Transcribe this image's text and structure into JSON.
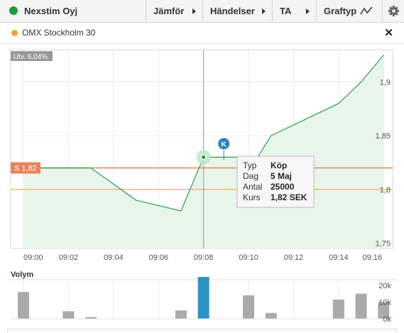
{
  "toolbar": {
    "instrument_name": "Nexstim Oyj",
    "compare_label": "Jämför",
    "events_label": "Händelser",
    "ta_label": "TA",
    "graph_type_label": "Graftyp"
  },
  "legend": {
    "index_name": "OMX Stockholm 30",
    "close_symbol": "✕"
  },
  "colors": {
    "price_line": "#2e9e4a",
    "price_fill": "#e8f5ea",
    "sell_line": "#e8835a",
    "index_line": "#f0c24a",
    "volume_bar": "#aaaaaa",
    "volume_highlight": "#2b93c8"
  },
  "chart_data": [
    {
      "type": "area",
      "change_badge": "Utv. 6,04%",
      "x_ticks": [
        "09:00",
        "09:02",
        "09:04",
        "09:06",
        "09:08",
        "09:10",
        "09:12",
        "09:14",
        "09:16"
      ],
      "y_ticks": [
        "1,75",
        "1,8",
        "1,85",
        "1,9"
      ],
      "ylim": [
        1.745,
        1.93
      ],
      "xlim": [
        0,
        16.4
      ],
      "series": [
        {
          "x": [
            0,
            3,
            5,
            7,
            8,
            8.5,
            10.4,
            11,
            14,
            15,
            16
          ],
          "y": [
            1.82,
            1.82,
            1.79,
            1.78,
            1.83,
            1.83,
            1.83,
            1.85,
            1.88,
            1.9,
            1.925
          ]
        }
      ],
      "sell_level": {
        "label": "S 1,82",
        "value": 1.82
      },
      "index_level": 1.8,
      "trade_marker": {
        "label": "K",
        "x": 8.9,
        "y": 1.83
      },
      "crosshair_x": 8,
      "tooltip": {
        "rows": [
          {
            "key": "Typ",
            "value": "Köp"
          },
          {
            "key": "Dag",
            "value": "5 Maj"
          },
          {
            "key": "Antal",
            "value": "25000"
          },
          {
            "key": "Kurs",
            "value": "1,82 SEK"
          }
        ]
      }
    },
    {
      "type": "bar",
      "title": "Volym",
      "y_ticks": [
        "20k",
        "10k",
        "0k"
      ],
      "ylim": [
        0,
        25000
      ],
      "x": [
        0,
        2,
        3,
        7,
        8,
        10,
        11,
        14,
        15,
        16
      ],
      "values": [
        16000,
        4500,
        1000,
        5000,
        25000,
        14000,
        3500,
        11500,
        15000,
        10000
      ],
      "highlight_index": 4
    }
  ]
}
